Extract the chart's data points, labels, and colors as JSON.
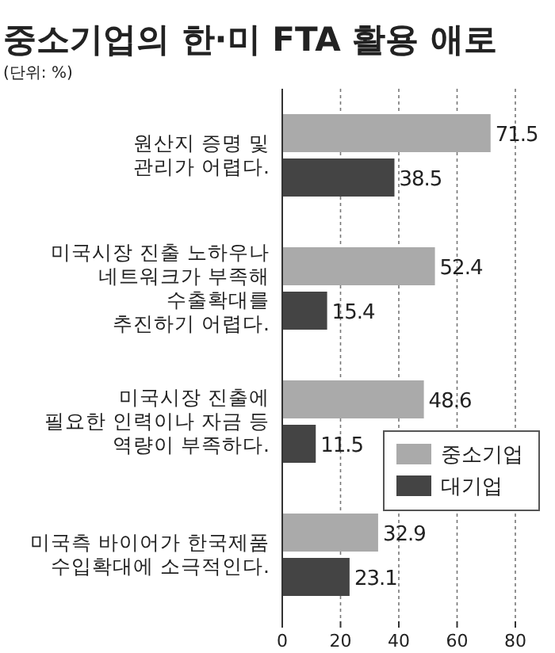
{
  "chart_data": {
    "type": "bar",
    "orientation": "horizontal",
    "title": "중소기업의 한·미 FTA 활용 애로",
    "subtitle": "(단위: %)",
    "categories": [
      "원산지 증명 및\n관리가 어렵다.",
      "미국시장 진출 노하우나\n네트워크가 부족해\n수출확대를\n추진하기 어렵다.",
      "미국시장 진출에\n필요한 인력이나 자금 등\n역량이 부족하다.",
      "미국측 바이어가 한국제품\n수입확대에 소극적인다."
    ],
    "series": [
      {
        "name": "중소기업",
        "color": "#aaaaaa",
        "values": [
          71.5,
          52.4,
          48.6,
          32.9
        ]
      },
      {
        "name": "대기업",
        "color": "#444444",
        "values": [
          38.5,
          15.4,
          11.5,
          23.1
        ]
      }
    ],
    "xlim": [
      0,
      80
    ],
    "xticks": [
      0,
      20,
      40,
      60,
      80
    ],
    "grid": "x",
    "legend": "right",
    "data_labels": true
  }
}
